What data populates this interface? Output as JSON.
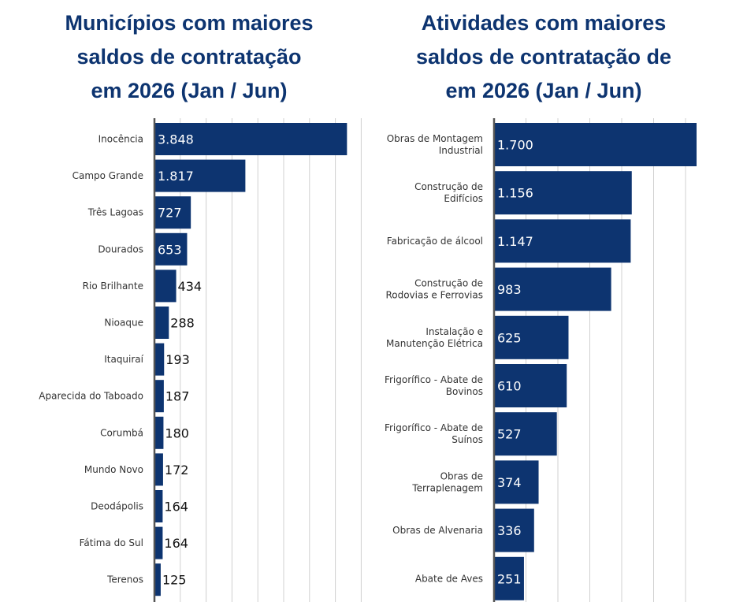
{
  "chart_data": [
    {
      "type": "bar",
      "orientation": "horizontal",
      "title": "Municípios com maiores\nsaldos de contratação\nem 2026 (Jan / Jun)",
      "categories": [
        "Inocência",
        "Campo Grande",
        "Três Lagoas",
        "Dourados",
        "Rio Brilhante",
        "Nioaque",
        "Itaquiraí",
        "Aparecida do Taboado",
        "Corumbá",
        "Mundo Novo",
        "Deodápolis",
        "Fátima do Sul",
        "Terenos"
      ],
      "values": [
        3848,
        1817,
        727,
        653,
        434,
        288,
        193,
        187,
        180,
        172,
        164,
        164,
        125
      ],
      "value_labels": [
        "3.848",
        "1.817",
        "727",
        "653",
        "434",
        "288",
        "193",
        "187",
        "180",
        "172",
        "164",
        "164",
        "125"
      ],
      "xlim": [
        0,
        4000
      ],
      "grid": true,
      "bar_color": "#0d3470"
    },
    {
      "type": "bar",
      "orientation": "horizontal",
      "title": "Atividades com maiores\nsaldos de contratação de\nem 2026 (Jan / Jun)",
      "categories": [
        "Obras de Montagem\nIndustrial",
        "Construção de\nEdifícios",
        "Fabricação de álcool",
        "Construção de\nRodovias e Ferrovias",
        "Instalação e\nManutenção Elétrica",
        "Frigorífico - Abate de\nBovinos",
        "Frigorífico - Abate de\nSuínos",
        "Obras de\nTerraplenagem",
        "Obras de Alvenaria",
        "Abate de Aves"
      ],
      "values": [
        1700,
        1156,
        1147,
        983,
        625,
        610,
        527,
        374,
        336,
        251
      ],
      "value_labels": [
        "1.700",
        "1.156",
        "1.147",
        "983",
        "625",
        "610",
        "527",
        "374",
        "336",
        "251"
      ],
      "xlim": [
        0,
        1700
      ],
      "grid": true,
      "bar_color": "#0d3470"
    }
  ]
}
